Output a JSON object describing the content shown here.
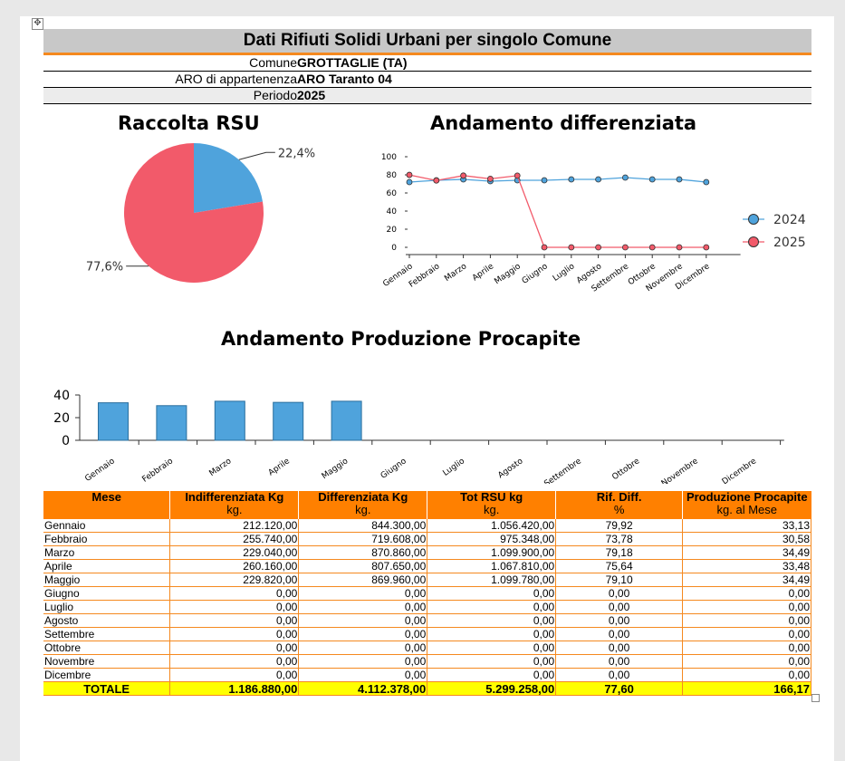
{
  "header": {
    "title": "Dati Rifiuti Solidi Urbani per singolo Comune",
    "comune_label": "Comune",
    "comune_value": "GROTTAGLIE (TA)",
    "aro_label": "ARO di appartenenza",
    "aro_value": "ARO Taranto 04",
    "periodo_label": "Periodo",
    "periodo_value": "2025"
  },
  "chart_data": [
    {
      "type": "pie",
      "title": "Raccolta RSU",
      "slices": [
        {
          "label": "22,4%",
          "value": 22.4,
          "color": "#4fa3dc"
        },
        {
          "label": "77,6%",
          "value": 77.6,
          "color": "#f25a6a"
        }
      ]
    },
    {
      "type": "line",
      "title": "Andamento differenziata",
      "categories": [
        "Gennaio",
        "Febbraio",
        "Marzo",
        "Aprile",
        "Maggio",
        "Giugno",
        "Luglio",
        "Agosto",
        "Settembre",
        "Ottobre",
        "Novembre",
        "Dicembre"
      ],
      "ylim": [
        0,
        100
      ],
      "yticks": [
        "0",
        "20",
        "40",
        "60",
        "80",
        "100"
      ],
      "legend_position": "right",
      "series": [
        {
          "name": "2024",
          "color": "#4fa3dc",
          "values": [
            72,
            74,
            75,
            73,
            74,
            74,
            75,
            75,
            77,
            75,
            75,
            72
          ]
        },
        {
          "name": "2025",
          "color": "#f25a6a",
          "values": [
            79.92,
            73.78,
            79.18,
            75.64,
            79.1,
            0,
            0,
            0,
            0,
            0,
            0,
            0
          ]
        }
      ]
    },
    {
      "type": "bar",
      "title": "Andamento Produzione Procapite",
      "categories": [
        "Gennaio",
        "Febbraio",
        "Marzo",
        "Aprile",
        "Maggio",
        "Giugno",
        "Luglio",
        "Agosto",
        "Settembre",
        "Ottobre",
        "Novembre",
        "Dicembre"
      ],
      "ylim": [
        0,
        40
      ],
      "yticks": [
        "0",
        "20",
        "40"
      ],
      "color": "#4fa3dc",
      "values": [
        33.13,
        30.58,
        34.49,
        33.48,
        34.49,
        0,
        0,
        0,
        0,
        0,
        0,
        0
      ]
    }
  ],
  "table": {
    "headers": [
      {
        "title": "Mese",
        "sub": ""
      },
      {
        "title": "Indifferenziata Kg",
        "sub": "kg."
      },
      {
        "title": "Differenziata Kg",
        "sub": "kg."
      },
      {
        "title": "Tot RSU kg",
        "sub": "kg."
      },
      {
        "title": "Rif. Diff.",
        "sub": "%"
      },
      {
        "title": "Produzione Procapite",
        "sub": "kg. al Mese"
      }
    ],
    "rows": [
      [
        "Gennaio",
        "212.120,00",
        "844.300,00",
        "1.056.420,00",
        "79,92",
        "33,13"
      ],
      [
        "Febbraio",
        "255.740,00",
        "719.608,00",
        "975.348,00",
        "73,78",
        "30,58"
      ],
      [
        "Marzo",
        "229.040,00",
        "870.860,00",
        "1.099.900,00",
        "79,18",
        "34,49"
      ],
      [
        "Aprile",
        "260.160,00",
        "807.650,00",
        "1.067.810,00",
        "75,64",
        "33,48"
      ],
      [
        "Maggio",
        "229.820,00",
        "869.960,00",
        "1.099.780,00",
        "79,10",
        "34,49"
      ],
      [
        "Giugno",
        "0,00",
        "0,00",
        "0,00",
        "0,00",
        "0,00"
      ],
      [
        "Luglio",
        "0,00",
        "0,00",
        "0,00",
        "0,00",
        "0,00"
      ],
      [
        "Agosto",
        "0,00",
        "0,00",
        "0,00",
        "0,00",
        "0,00"
      ],
      [
        "Settembre",
        "0,00",
        "0,00",
        "0,00",
        "0,00",
        "0,00"
      ],
      [
        "Ottobre",
        "0,00",
        "0,00",
        "0,00",
        "0,00",
        "0,00"
      ],
      [
        "Novembre",
        "0,00",
        "0,00",
        "0,00",
        "0,00",
        "0,00"
      ],
      [
        "Dicembre",
        "0,00",
        "0,00",
        "0,00",
        "0,00",
        "0,00"
      ]
    ],
    "total": [
      "TOTALE",
      "1.186.880,00",
      "4.112.378,00",
      "5.299.258,00",
      "77,60",
      "166,17"
    ]
  },
  "icons": {
    "move_handle": "move-icon",
    "resize_handle": "resize-icon"
  }
}
